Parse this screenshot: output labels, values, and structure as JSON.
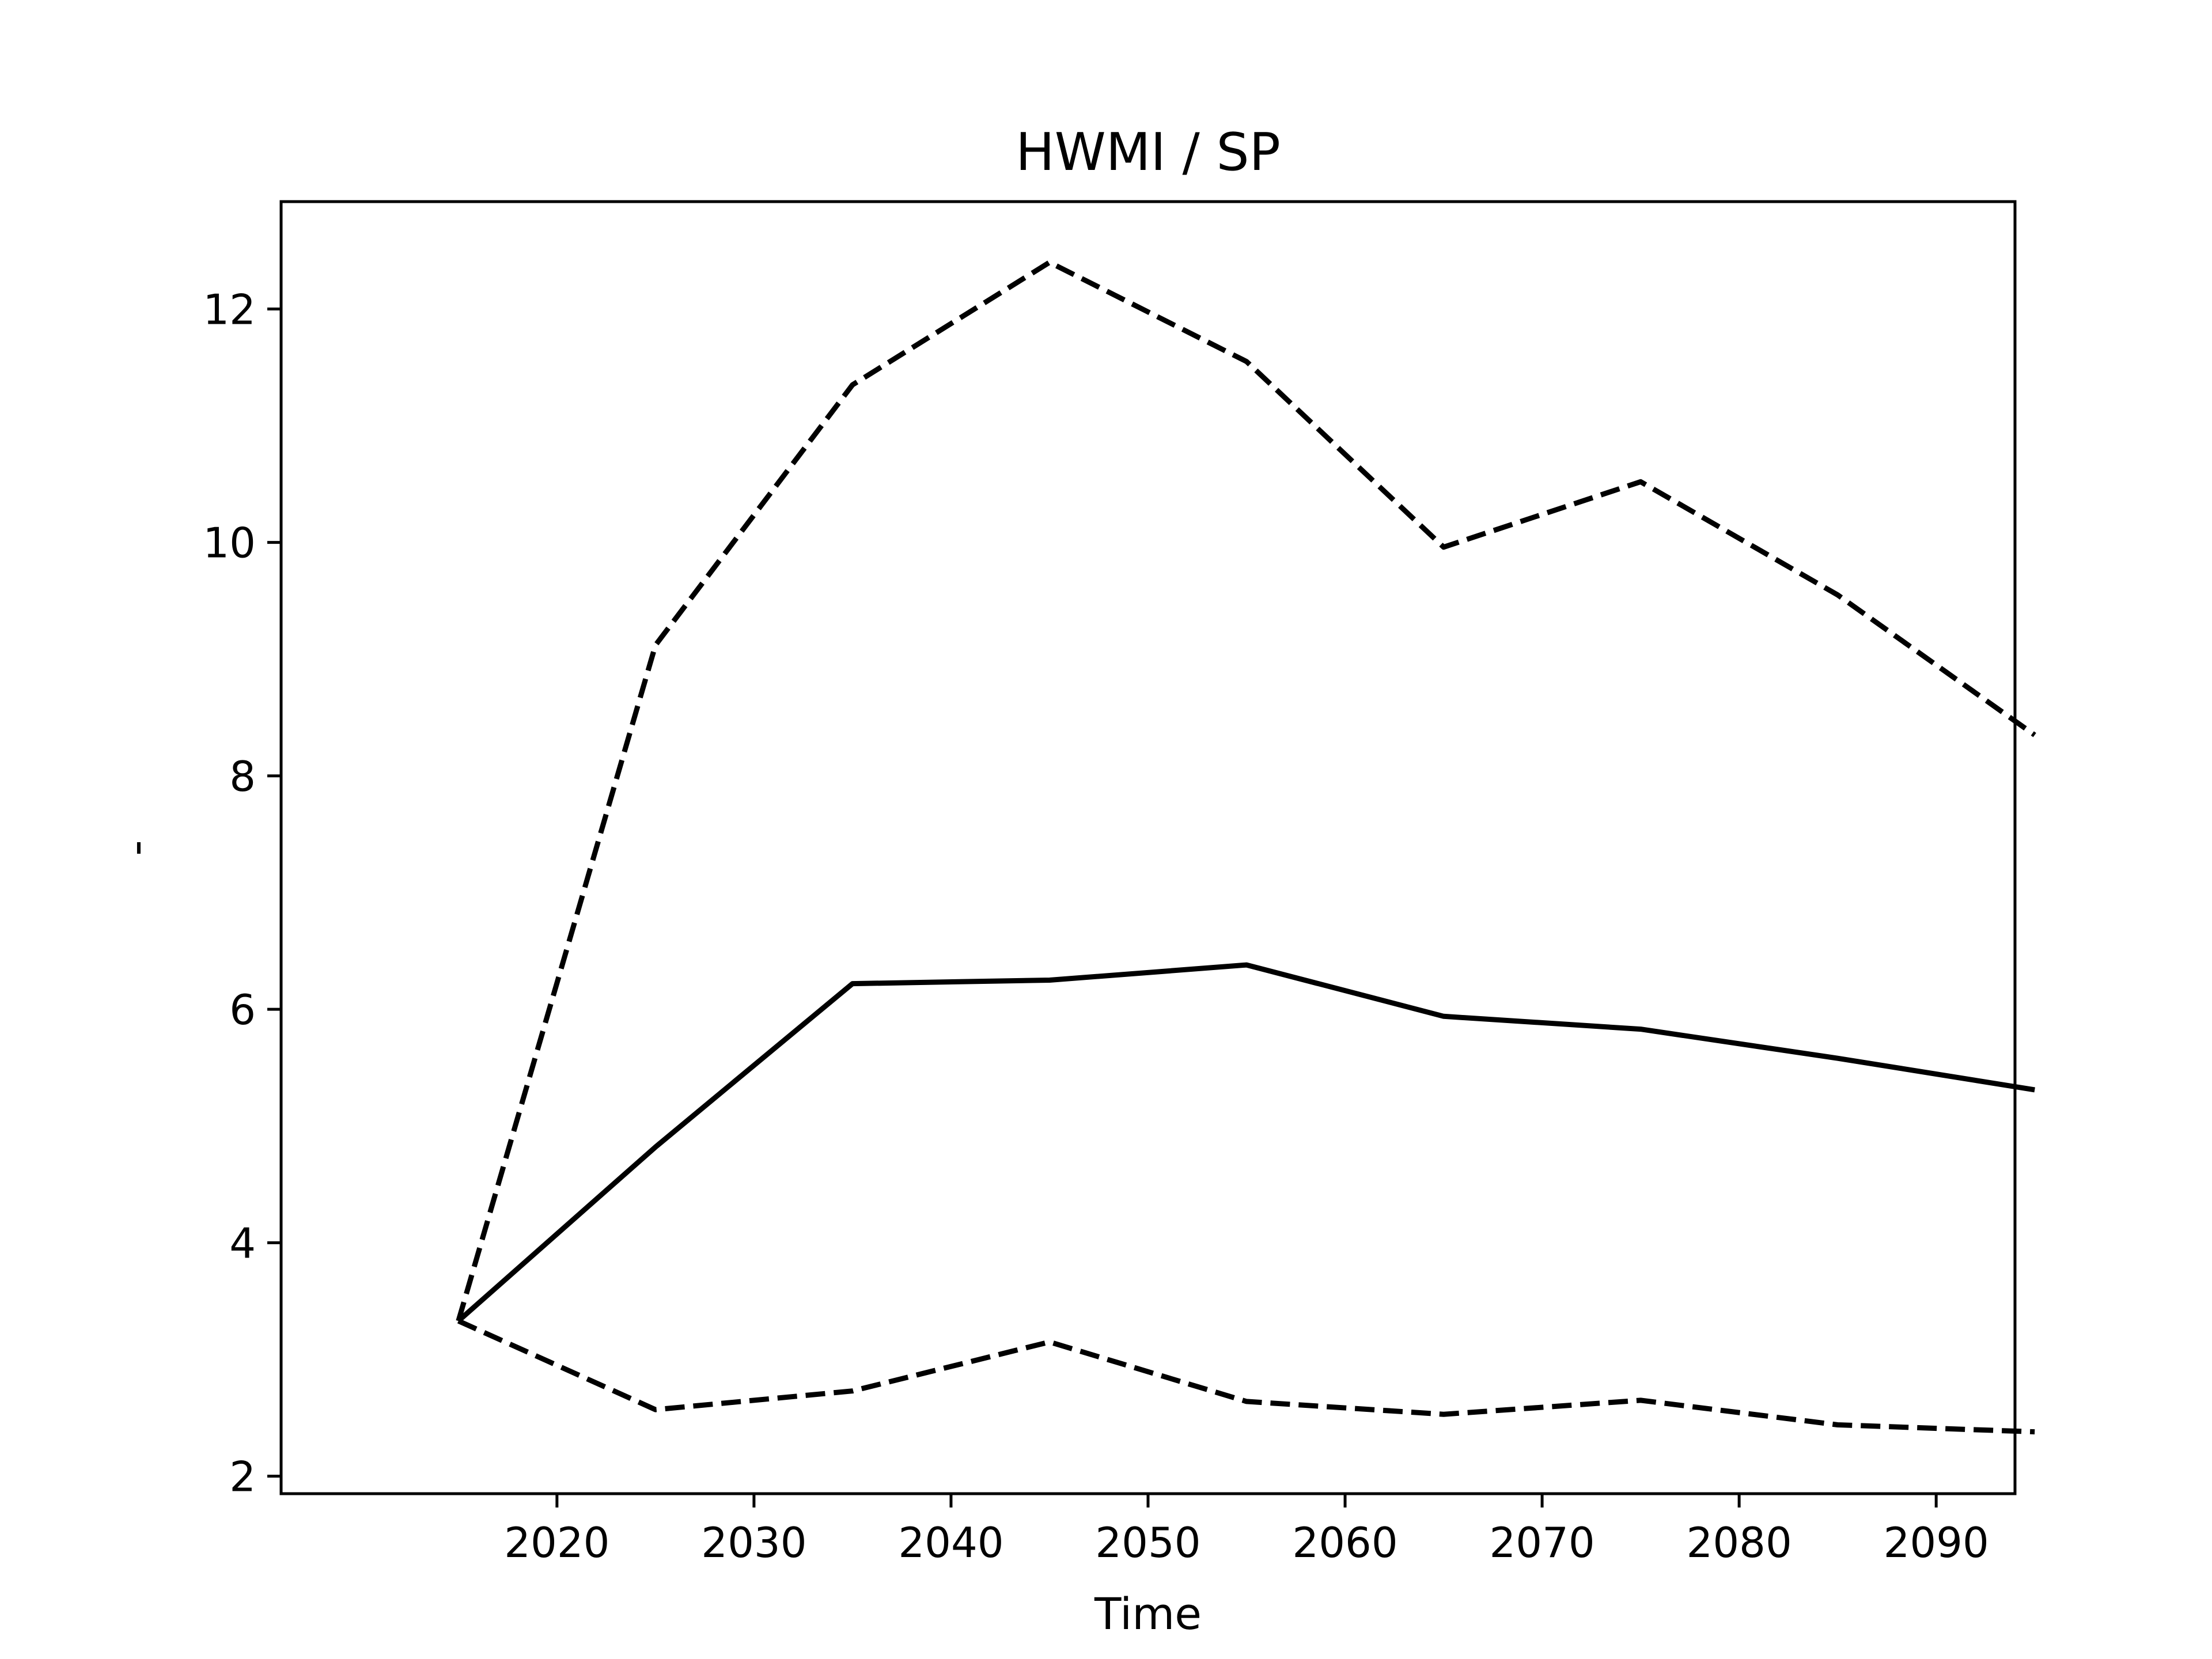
{
  "chart_data": {
    "type": "line",
    "title": "HWMI / SP",
    "xlabel": "Time",
    "ylabel": "-",
    "x": [
      2015,
      2025,
      2035,
      2045,
      2055,
      2065,
      2075,
      2085,
      2095
    ],
    "series": [
      {
        "style": "dashed",
        "color": "#000000",
        "values": [
          3.33,
          9.12,
          11.35,
          12.4,
          11.55,
          9.96,
          10.52,
          9.55,
          8.35
        ]
      },
      {
        "style": "solid",
        "color": "#000000",
        "values": [
          3.33,
          4.82,
          6.22,
          6.25,
          6.38,
          5.94,
          5.83,
          5.58,
          5.31
        ]
      },
      {
        "style": "dashed",
        "color": "#000000",
        "values": [
          3.33,
          2.57,
          2.73,
          3.15,
          2.64,
          2.53,
          2.65,
          2.44,
          2.38
        ]
      }
    ],
    "xlim": [
      2006,
      2094
    ],
    "ylim": [
      1.85,
      12.92
    ],
    "xticks": [
      2020,
      2030,
      2040,
      2050,
      2060,
      2070,
      2080,
      2090
    ],
    "yticks": [
      2,
      4,
      6,
      8,
      10,
      12
    ],
    "grid": false,
    "legend": false
  }
}
